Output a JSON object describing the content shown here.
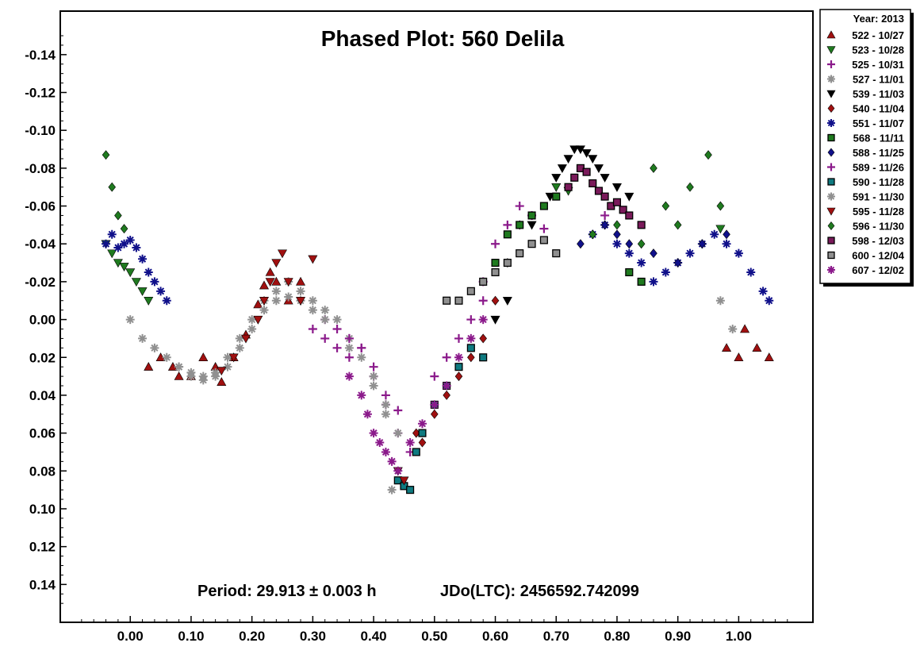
{
  "chart_data": {
    "type": "scatter",
    "title": "Phased Plot: 560 Delila",
    "xlabel": "",
    "ylabel": "",
    "xlim": [
      -0.115,
      1.122
    ],
    "ylim": [
      0.16,
      -0.163
    ],
    "y_inverted": true,
    "grid": false,
    "x_ticks": [
      "0.00",
      "0.10",
      "0.20",
      "0.30",
      "0.40",
      "0.50",
      "0.60",
      "0.70",
      "0.80",
      "0.90",
      "1.00"
    ],
    "x_tick_values": [
      0,
      0.1,
      0.2,
      0.3,
      0.4,
      0.5,
      0.6,
      0.7,
      0.8,
      0.9,
      1.0
    ],
    "y_ticks": [
      "-0.14",
      "-0.12",
      "-0.10",
      "-0.08",
      "-0.06",
      "-0.04",
      "-0.02",
      "0.00",
      "0.02",
      "0.04",
      "0.06",
      "0.08",
      "0.10",
      "0.12",
      "0.14"
    ],
    "y_tick_values": [
      -0.14,
      -0.12,
      -0.1,
      -0.08,
      -0.06,
      -0.04,
      -0.02,
      0.0,
      0.02,
      0.04,
      0.06,
      0.08,
      0.1,
      0.12,
      0.14
    ],
    "annotations": {
      "period": "Period: 29.913 ± 0.003 h",
      "epoch": "JDo(LTC): 2456592.742099"
    },
    "legend": {
      "placement": "right-outside-top",
      "header": "Year: 2013"
    },
    "series": [
      {
        "name": "522 - 10/27",
        "marker": "triangle-up",
        "color": "#a01010",
        "points": [
          [
            0.03,
            0.025
          ],
          [
            0.05,
            0.02
          ],
          [
            0.07,
            0.025
          ],
          [
            0.08,
            0.03
          ],
          [
            0.1,
            0.03
          ],
          [
            0.12,
            0.02
          ],
          [
            0.14,
            0.025
          ],
          [
            0.15,
            0.033
          ],
          [
            0.17,
            0.02
          ],
          [
            0.19,
            0.008
          ],
          [
            0.21,
            -0.008
          ],
          [
            0.22,
            -0.018
          ],
          [
            0.23,
            -0.025
          ],
          [
            0.24,
            -0.02
          ],
          [
            0.26,
            -0.01
          ],
          [
            0.28,
            -0.02
          ],
          [
            0.98,
            0.015
          ],
          [
            1.0,
            0.02
          ],
          [
            1.01,
            0.005
          ],
          [
            1.03,
            0.015
          ],
          [
            1.05,
            0.02
          ]
        ]
      },
      {
        "name": "523 - 10/28",
        "marker": "triangle-down",
        "color": "#1f7a1f",
        "points": [
          [
            -0.04,
            -0.04
          ],
          [
            -0.03,
            -0.035
          ],
          [
            -0.02,
            -0.03
          ],
          [
            -0.01,
            -0.028
          ],
          [
            0.0,
            -0.025
          ],
          [
            0.01,
            -0.02
          ],
          [
            0.02,
            -0.015
          ],
          [
            0.03,
            -0.01
          ],
          [
            0.7,
            -0.07
          ],
          [
            0.72,
            -0.068
          ],
          [
            0.97,
            -0.048
          ]
        ]
      },
      {
        "name": "525 - 10/31",
        "marker": "plus",
        "color": "#8b1a8b",
        "points": [
          [
            0.3,
            0.005
          ],
          [
            0.32,
            0.01
          ],
          [
            0.34,
            0.015
          ],
          [
            0.36,
            0.02
          ],
          [
            0.38,
            0.015
          ],
          [
            0.4,
            0.03
          ],
          [
            0.42,
            0.045
          ],
          [
            0.44,
            0.048
          ],
          [
            0.58,
            -0.02
          ],
          [
            0.6,
            -0.04
          ],
          [
            0.62,
            -0.05
          ],
          [
            0.64,
            -0.06
          ],
          [
            0.66,
            -0.055
          ],
          [
            0.68,
            -0.048
          ],
          [
            0.78,
            -0.055
          ]
        ]
      },
      {
        "name": "527 - 11/01",
        "marker": "asterisk",
        "color": "#909090",
        "points": [
          [
            0.0,
            0.0
          ],
          [
            0.02,
            0.01
          ],
          [
            0.04,
            0.015
          ],
          [
            0.06,
            0.02
          ],
          [
            0.08,
            0.025
          ],
          [
            0.1,
            0.028
          ],
          [
            0.12,
            0.03
          ],
          [
            0.14,
            0.028
          ],
          [
            0.16,
            0.02
          ],
          [
            0.18,
            0.01
          ],
          [
            0.2,
            0.0
          ],
          [
            0.22,
            -0.01
          ],
          [
            0.24,
            -0.015
          ],
          [
            0.26,
            -0.02
          ],
          [
            0.28,
            -0.015
          ],
          [
            0.3,
            -0.01
          ],
          [
            0.32,
            -0.005
          ],
          [
            0.34,
            0.0
          ],
          [
            0.36,
            0.01
          ],
          [
            0.38,
            0.02
          ],
          [
            0.4,
            0.035
          ],
          [
            0.42,
            0.05
          ],
          [
            0.43,
            0.09
          ],
          [
            0.97,
            -0.01
          ],
          [
            0.99,
            0.005
          ]
        ]
      },
      {
        "name": "539 - 11/03",
        "marker": "triangle-down",
        "color": "#000000",
        "points": [
          [
            0.6,
            0.0
          ],
          [
            0.62,
            -0.01
          ],
          [
            0.66,
            -0.05
          ],
          [
            0.69,
            -0.065
          ],
          [
            0.7,
            -0.075
          ],
          [
            0.71,
            -0.08
          ],
          [
            0.72,
            -0.085
          ],
          [
            0.73,
            -0.09
          ],
          [
            0.74,
            -0.09
          ],
          [
            0.75,
            -0.088
          ],
          [
            0.76,
            -0.085
          ],
          [
            0.77,
            -0.08
          ],
          [
            0.78,
            -0.075
          ],
          [
            0.8,
            -0.07
          ],
          [
            0.82,
            -0.065
          ]
        ]
      },
      {
        "name": "540 - 11/04",
        "marker": "diamond",
        "color": "#a01010",
        "points": [
          [
            0.47,
            0.06
          ],
          [
            0.48,
            0.065
          ],
          [
            0.5,
            0.05
          ],
          [
            0.52,
            0.04
          ],
          [
            0.54,
            0.03
          ],
          [
            0.56,
            0.02
          ],
          [
            0.58,
            0.01
          ],
          [
            0.6,
            -0.01
          ],
          [
            0.62,
            -0.03
          ],
          [
            0.64,
            -0.05
          ]
        ]
      },
      {
        "name": "551 - 11/07",
        "marker": "asterisk",
        "color": "#10108a",
        "points": [
          [
            -0.04,
            -0.04
          ],
          [
            -0.03,
            -0.045
          ],
          [
            -0.02,
            -0.038
          ],
          [
            -0.01,
            -0.04
          ],
          [
            0.0,
            -0.042
          ],
          [
            0.01,
            -0.038
          ],
          [
            0.02,
            -0.032
          ],
          [
            0.03,
            -0.025
          ],
          [
            0.04,
            -0.02
          ],
          [
            0.05,
            -0.015
          ],
          [
            0.06,
            -0.01
          ],
          [
            0.76,
            -0.045
          ],
          [
            0.78,
            -0.05
          ],
          [
            0.8,
            -0.04
          ],
          [
            0.82,
            -0.035
          ],
          [
            0.84,
            -0.03
          ],
          [
            0.86,
            -0.02
          ],
          [
            0.88,
            -0.025
          ],
          [
            0.9,
            -0.03
          ],
          [
            0.92,
            -0.035
          ],
          [
            0.94,
            -0.04
          ],
          [
            0.96,
            -0.045
          ],
          [
            0.98,
            -0.04
          ],
          [
            1.0,
            -0.035
          ],
          [
            1.02,
            -0.025
          ],
          [
            1.04,
            -0.015
          ],
          [
            1.05,
            -0.01
          ]
        ]
      },
      {
        "name": "568 - 11/11",
        "marker": "square",
        "color": "#1f7a1f",
        "points": [
          [
            0.6,
            -0.03
          ],
          [
            0.62,
            -0.045
          ],
          [
            0.64,
            -0.05
          ],
          [
            0.66,
            -0.055
          ],
          [
            0.68,
            -0.06
          ],
          [
            0.7,
            -0.065
          ],
          [
            0.82,
            -0.025
          ],
          [
            0.84,
            -0.02
          ]
        ]
      },
      {
        "name": "588 - 11/25",
        "marker": "diamond",
        "color": "#10108a",
        "points": [
          [
            0.74,
            -0.04
          ],
          [
            0.76,
            -0.045
          ],
          [
            0.78,
            -0.05
          ],
          [
            0.8,
            -0.045
          ],
          [
            0.82,
            -0.04
          ],
          [
            0.86,
            -0.035
          ],
          [
            0.9,
            -0.03
          ],
          [
            0.94,
            -0.04
          ],
          [
            0.98,
            -0.045
          ]
        ]
      },
      {
        "name": "589 - 11/26",
        "marker": "plus",
        "color": "#8b1a8b",
        "points": [
          [
            0.32,
            0.0
          ],
          [
            0.34,
            0.005
          ],
          [
            0.36,
            0.01
          ],
          [
            0.38,
            0.015
          ],
          [
            0.4,
            0.025
          ],
          [
            0.42,
            0.04
          ],
          [
            0.44,
            0.06
          ],
          [
            0.46,
            0.07
          ],
          [
            0.5,
            0.03
          ],
          [
            0.52,
            0.02
          ],
          [
            0.54,
            0.01
          ],
          [
            0.56,
            0.0
          ],
          [
            0.58,
            -0.01
          ]
        ]
      },
      {
        "name": "590 - 11/28",
        "marker": "square",
        "color": "#0f7a80",
        "points": [
          [
            0.44,
            0.085
          ],
          [
            0.45,
            0.088
          ],
          [
            0.46,
            0.09
          ],
          [
            0.47,
            0.07
          ],
          [
            0.48,
            0.06
          ],
          [
            0.5,
            0.045
          ],
          [
            0.52,
            0.035
          ],
          [
            0.54,
            0.025
          ],
          [
            0.56,
            0.015
          ],
          [
            0.58,
            0.02
          ]
        ]
      },
      {
        "name": "591 - 11/30",
        "marker": "asterisk",
        "color": "#909090",
        "points": [
          [
            0.08,
            0.025
          ],
          [
            0.1,
            0.03
          ],
          [
            0.12,
            0.032
          ],
          [
            0.14,
            0.03
          ],
          [
            0.16,
            0.025
          ],
          [
            0.18,
            0.015
          ],
          [
            0.2,
            0.005
          ],
          [
            0.22,
            -0.005
          ],
          [
            0.24,
            -0.01
          ],
          [
            0.26,
            -0.012
          ],
          [
            0.28,
            -0.01
          ],
          [
            0.3,
            -0.005
          ],
          [
            0.32,
            0.0
          ],
          [
            0.36,
            0.015
          ],
          [
            0.4,
            0.03
          ],
          [
            0.42,
            0.045
          ],
          [
            0.44,
            0.06
          ]
        ]
      },
      {
        "name": "595 - 11/28",
        "marker": "triangle-down",
        "color": "#a01010",
        "points": [
          [
            0.15,
            0.027
          ],
          [
            0.17,
            0.02
          ],
          [
            0.19,
            0.01
          ],
          [
            0.21,
            0.0
          ],
          [
            0.22,
            -0.01
          ],
          [
            0.23,
            -0.02
          ],
          [
            0.24,
            -0.03
          ],
          [
            0.25,
            -0.035
          ],
          [
            0.26,
            -0.02
          ],
          [
            0.28,
            -0.01
          ],
          [
            0.3,
            -0.032
          ],
          [
            0.44,
            0.08
          ],
          [
            0.45,
            0.085
          ]
        ]
      },
      {
        "name": "596 - 11/30",
        "marker": "diamond",
        "color": "#1f7a1f",
        "points": [
          [
            -0.04,
            -0.087
          ],
          [
            -0.03,
            -0.07
          ],
          [
            -0.02,
            -0.055
          ],
          [
            -0.01,
            -0.048
          ],
          [
            0.76,
            -0.045
          ],
          [
            0.8,
            -0.05
          ],
          [
            0.84,
            -0.04
          ],
          [
            0.86,
            -0.08
          ],
          [
            0.88,
            -0.06
          ],
          [
            0.9,
            -0.05
          ],
          [
            0.92,
            -0.07
          ],
          [
            0.95,
            -0.087
          ],
          [
            0.97,
            -0.06
          ]
        ]
      },
      {
        "name": "598 - 12/03",
        "marker": "square",
        "color": "#7a1a5a",
        "points": [
          [
            0.72,
            -0.07
          ],
          [
            0.73,
            -0.075
          ],
          [
            0.74,
            -0.08
          ],
          [
            0.75,
            -0.078
          ],
          [
            0.76,
            -0.072
          ],
          [
            0.77,
            -0.068
          ],
          [
            0.78,
            -0.065
          ],
          [
            0.79,
            -0.06
          ],
          [
            0.8,
            -0.062
          ],
          [
            0.81,
            -0.058
          ],
          [
            0.82,
            -0.055
          ],
          [
            0.84,
            -0.05
          ]
        ]
      },
      {
        "name": "600 - 12/04",
        "marker": "square",
        "color": "#909090",
        "points": [
          [
            0.52,
            -0.01
          ],
          [
            0.54,
            -0.01
          ],
          [
            0.56,
            -0.015
          ],
          [
            0.58,
            -0.02
          ],
          [
            0.6,
            -0.025
          ],
          [
            0.62,
            -0.03
          ],
          [
            0.64,
            -0.035
          ],
          [
            0.66,
            -0.04
          ],
          [
            0.68,
            -0.042
          ],
          [
            0.7,
            -0.035
          ]
        ]
      },
      {
        "name": "607 - 12/02",
        "marker": "asterisk",
        "color": "#8b1a8b",
        "points": [
          [
            0.36,
            0.03
          ],
          [
            0.38,
            0.04
          ],
          [
            0.39,
            0.05
          ],
          [
            0.4,
            0.06
          ],
          [
            0.41,
            0.065
          ],
          [
            0.42,
            0.07
          ],
          [
            0.43,
            0.075
          ],
          [
            0.44,
            0.08
          ],
          [
            0.46,
            0.065
          ],
          [
            0.48,
            0.055
          ],
          [
            0.5,
            0.045
          ],
          [
            0.52,
            0.035
          ],
          [
            0.54,
            0.02
          ],
          [
            0.56,
            0.01
          ],
          [
            0.58,
            0.0
          ]
        ]
      }
    ]
  }
}
